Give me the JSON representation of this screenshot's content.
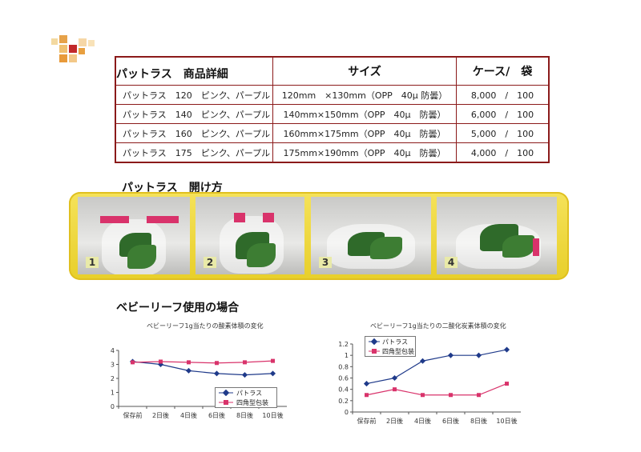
{
  "product_table": {
    "title": "パットラス　商品詳細",
    "headers": [
      "サイズ",
      "ケース/　袋"
    ],
    "rows": [
      {
        "name": "パットラス　120　ピンク、パープル",
        "size": "120mm　×130mm（OPP　40μ 防曇）",
        "qty": "8,000　/　100"
      },
      {
        "name": "パットラス　140　ピンク、パープル",
        "size": "140mm×150mm（OPP　40μ　防曇）",
        "qty": "6,000　/　100"
      },
      {
        "name": "パットラス　160　ピンク、パープル",
        "size": "160mm×175mm（OPP　40μ　防曇）",
        "qty": "5,000　/　100"
      },
      {
        "name": "パットラス　175　ピンク、パープル",
        "size": "175mm×190mm（OPP　40μ　防曇）",
        "qty": "4,000　/　100"
      }
    ]
  },
  "opening": {
    "title": "パットラス　開け方",
    "steps": [
      "1",
      "2",
      "3",
      "4"
    ]
  },
  "usage_title": "ベビーリーフ使用の場合",
  "colors": {
    "accent": "#8b1a1a",
    "frame": "#ecd43a",
    "series_a": "#1f3a8a",
    "series_b": "#d9336b"
  },
  "chart_data": [
    {
      "type": "line",
      "title": "ベビーリーフ1g当たりの酸素体積の変化",
      "categories": [
        "保存前",
        "2日後",
        "4日後",
        "6日後",
        "8日後",
        "10日後"
      ],
      "ylim": [
        0,
        4
      ],
      "yticks": [
        "0",
        "1",
        "2",
        "3",
        "4"
      ],
      "series": [
        {
          "name": "パトラス",
          "values": [
            3.2,
            3.0,
            2.55,
            2.35,
            2.25,
            2.35
          ]
        },
        {
          "name": "四角型包装",
          "values": [
            3.15,
            3.2,
            3.15,
            3.1,
            3.15,
            3.25
          ]
        }
      ]
    },
    {
      "type": "line",
      "title": "ベビーリーフ1g当たりの二酸化炭素体積の変化",
      "categories": [
        "保存前",
        "2日後",
        "4日後",
        "6日後",
        "8日後",
        "10日後"
      ],
      "ylim": [
        0,
        1.2
      ],
      "yticks": [
        "0",
        "0.2",
        "0.4",
        "0.6",
        "0.8",
        "1",
        "1.2"
      ],
      "series": [
        {
          "name": "パトラス",
          "values": [
            0.5,
            0.6,
            0.9,
            1.0,
            1.0,
            1.1
          ]
        },
        {
          "name": "四角型包装",
          "values": [
            0.3,
            0.4,
            0.3,
            0.3,
            0.3,
            0.5
          ]
        }
      ]
    }
  ]
}
